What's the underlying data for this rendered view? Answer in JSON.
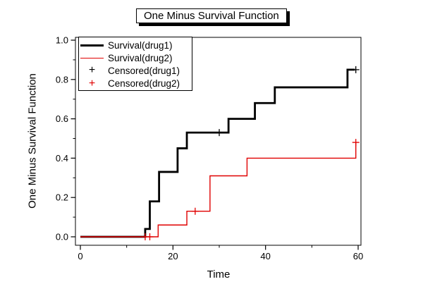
{
  "title": "One Minus Survival Function",
  "axes": {
    "x": {
      "label": "Time",
      "min": 0,
      "max": 60,
      "major_ticks": [
        {
          "v": 0,
          "label": "0"
        },
        {
          "v": 20,
          "label": "20"
        },
        {
          "v": 40,
          "label": "40"
        },
        {
          "v": 60,
          "label": "60"
        }
      ],
      "minor_ticks": [
        10,
        30,
        50
      ]
    },
    "y": {
      "label": "One Minus Survival Function",
      "min": 0,
      "max": 1,
      "major_ticks": [
        {
          "v": 0.0,
          "label": "0.0"
        },
        {
          "v": 0.2,
          "label": "0.2"
        },
        {
          "v": 0.4,
          "label": "0.4"
        },
        {
          "v": 0.6,
          "label": "0.6"
        },
        {
          "v": 0.8,
          "label": "0.8"
        },
        {
          "v": 1.0,
          "label": "1.0"
        }
      ],
      "minor_ticks": [
        0.1,
        0.3,
        0.5,
        0.7,
        0.9
      ]
    }
  },
  "legend": {
    "items": [
      {
        "label": "Survival(drug1)",
        "swatch": "line",
        "color": "#000000"
      },
      {
        "label": "Survival(drug2)",
        "swatch": "line",
        "color": "#e00000"
      },
      {
        "label": "Censored(drug1)",
        "swatch": "plus",
        "color": "#000000"
      },
      {
        "label": "Censored(drug2)",
        "swatch": "plus",
        "color": "#e00000"
      }
    ]
  },
  "chart_data": {
    "type": "line",
    "subtype": "step-function",
    "title": "One Minus Survival Function",
    "xlabel": "Time",
    "ylabel": "One Minus Survival Function",
    "xlim": [
      0,
      60
    ],
    "ylim": [
      0,
      1.0
    ],
    "grid": false,
    "legend_position": "top-left",
    "series": [
      {
        "name": "Survival(drug1)",
        "color": "#000000",
        "line_width": 2.8,
        "start": [
          0,
          0
        ],
        "steps": [
          [
            14,
            0.04
          ],
          [
            15,
            0.18
          ],
          [
            17,
            0.33
          ],
          [
            21,
            0.45
          ],
          [
            23,
            0.53
          ],
          [
            32,
            0.6
          ],
          [
            37.7,
            0.68
          ],
          [
            42,
            0.76
          ],
          [
            57.7,
            0.85
          ]
        ],
        "end_t": 59.3,
        "censored": [
          [
            30,
            0.53
          ],
          [
            59.5,
            0.85
          ]
        ]
      },
      {
        "name": "Survival(drug2)",
        "color": "#e00000",
        "line_width": 1.4,
        "start": [
          0,
          0
        ],
        "steps": [
          [
            16.8,
            0.06
          ],
          [
            23,
            0.13
          ],
          [
            28,
            0.31
          ],
          [
            36,
            0.4
          ],
          [
            59.5,
            0.48
          ]
        ],
        "end_t": 59.5,
        "censored": [
          [
            14,
            0
          ],
          [
            15,
            0
          ],
          [
            24.8,
            0.13
          ],
          [
            59.5,
            0.48
          ]
        ]
      }
    ]
  },
  "colors": {
    "background": "#ffffff",
    "frame": "#000000",
    "series1": "#000000",
    "series2": "#e00000"
  }
}
